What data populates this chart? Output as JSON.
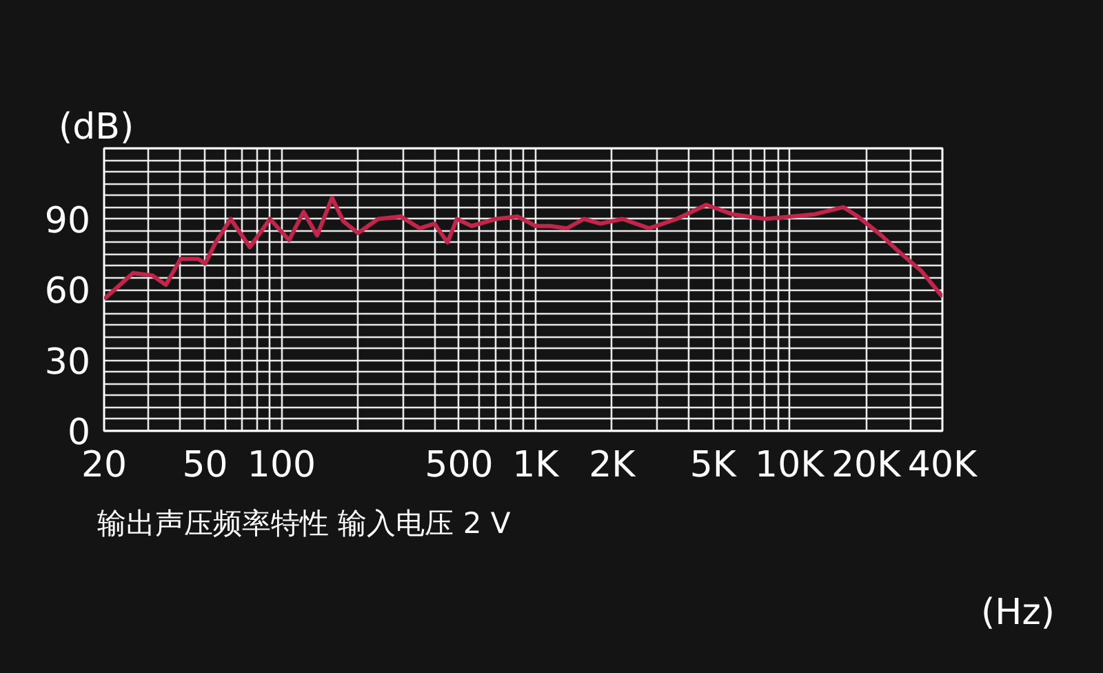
{
  "chart_data": {
    "type": "line",
    "xlabel": "(Hz)",
    "ylabel": "(dB)",
    "annotations": [
      "输出声压频率特性  输入电压  2 V"
    ],
    "log": "x",
    "grid": true,
    "marker": "none",
    "line_style": "solid",
    "xlim": [
      20,
      40000
    ],
    "ylim": [
      0,
      120
    ],
    "xticks": [
      20,
      {
        "value": 30,
        "label": null
      },
      {
        "value": 40,
        "label": null
      },
      50,
      {
        "value": 60,
        "label": null
      },
      {
        "value": 70,
        "label": null
      },
      {
        "value": 80,
        "label": null
      },
      {
        "value": 90,
        "label": null
      },
      100,
      {
        "value": 200,
        "label": null
      },
      {
        "value": 300,
        "label": null
      },
      {
        "value": 400,
        "label": null
      },
      500,
      {
        "value": 600,
        "label": null
      },
      {
        "value": 700,
        "label": null
      },
      {
        "value": 800,
        "label": null
      },
      {
        "value": 900,
        "label": null
      },
      {
        "value": 1000,
        "label": "1K"
      },
      {
        "value": 2000,
        "label": "2K"
      },
      {
        "value": 3000,
        "label": null
      },
      {
        "value": 4000,
        "label": null
      },
      {
        "value": 5000,
        "label": "5K"
      },
      {
        "value": 6000,
        "label": null
      },
      {
        "value": 7000,
        "label": null
      },
      {
        "value": 8000,
        "label": null
      },
      {
        "value": 9000,
        "label": null
      },
      {
        "value": 10000,
        "label": "10K"
      },
      {
        "value": 20000,
        "label": "20K"
      },
      {
        "value": 30000,
        "label": null
      },
      {
        "value": 40000,
        "label": "40K"
      }
    ],
    "yticks": [
      0,
      {
        "value": 5,
        "label": null
      },
      {
        "value": 10,
        "label": null
      },
      {
        "value": 15,
        "label": null
      },
      {
        "value": 20,
        "label": null
      },
      {
        "value": 25,
        "label": null
      },
      30,
      {
        "value": 35,
        "label": null
      },
      {
        "value": 40,
        "label": null
      },
      {
        "value": 45,
        "label": null
      },
      {
        "value": 50,
        "label": null
      },
      {
        "value": 55,
        "label": null
      },
      60,
      {
        "value": 65,
        "label": null
      },
      {
        "value": 70,
        "label": null
      },
      {
        "value": 75,
        "label": null
      },
      {
        "value": 80,
        "label": null
      },
      {
        "value": 85,
        "label": null
      },
      90,
      {
        "value": 95,
        "label": null
      },
      {
        "value": 100,
        "label": null
      },
      {
        "value": 105,
        "label": null
      },
      {
        "value": 110,
        "label": null
      },
      {
        "value": 115,
        "label": null
      },
      {
        "value": 120,
        "label": null
      }
    ],
    "series": [
      {
        "color": "#c0254a",
        "x": [
          20,
          26,
          31,
          35,
          40,
          47,
          50,
          55,
          63,
          75,
          90,
          107,
          122,
          138,
          158,
          175,
          200,
          240,
          295,
          350,
          400,
          450,
          490,
          560,
          700,
          850,
          1000,
          1140,
          1330,
          1550,
          1800,
          2200,
          2800,
          3600,
          4700,
          5950,
          8050,
          12600,
          16300,
          18600,
          23000,
          26400,
          33000,
          40000
        ],
        "values": [
          56,
          67,
          66,
          62,
          73,
          73,
          71,
          80,
          90,
          78,
          90,
          81,
          93,
          83,
          99,
          89,
          84,
          90,
          91,
          86,
          88,
          80,
          90,
          87,
          90,
          91,
          87,
          87,
          86,
          90,
          88,
          90,
          86,
          90,
          96,
          92,
          90,
          92,
          95,
          91,
          83,
          77,
          68,
          57
        ]
      }
    ]
  }
}
